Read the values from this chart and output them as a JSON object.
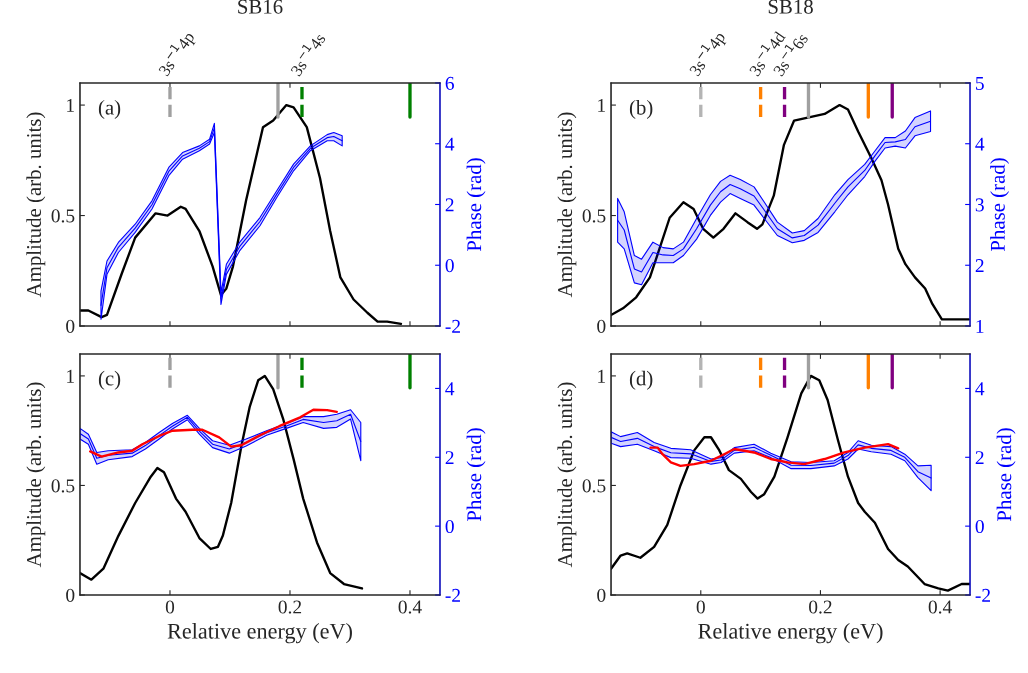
{
  "chart_data": [
    {
      "type": "line",
      "title": "SB16",
      "ylabel": "Amplitude (arb. units)",
      "y2label": "Phase (rad)",
      "annotations": [
        "(a)"
      ],
      "tick_labels": "y",
      "xlim": [
        -0.15,
        0.45
      ],
      "xticks": [
        0,
        0.2,
        0.4
      ],
      "ylim": [
        0,
        1.1
      ],
      "yticks": [
        0,
        0.5,
        1
      ],
      "y2lim": [
        -2,
        6
      ],
      "y2ticks": [
        -2,
        0,
        2,
        4,
        6
      ],
      "ref_lines": [
        {
          "axis": "x",
          "value": 0,
          "label": "3s$^{−1}$4p",
          "color": "#a0a0a0",
          "line_style": "dashed"
        },
        {
          "axis": "x",
          "value": 0.18,
          "color": "#a0a0a0",
          "line_style": "solid"
        },
        {
          "axis": "x",
          "value": 0.22,
          "label": "3s$^{−1}$4s",
          "color": "#008000",
          "line_style": "dashed"
        },
        {
          "axis": "x",
          "value": 0.4,
          "color": "#008000",
          "line_style": "solid"
        }
      ],
      "series": [
        {
          "type": "line",
          "color": "#000000",
          "x": [
            -0.15,
            -0.136,
            -0.114,
            -0.105,
            -0.08,
            -0.058,
            -0.024,
            -0.004,
            0.018,
            0.026,
            0.049,
            0.071,
            0.085,
            0.094,
            0.105,
            0.127,
            0.155,
            0.172,
            0.194,
            0.206,
            0.228,
            0.25,
            0.267,
            0.284,
            0.306,
            0.329,
            0.346,
            0.362,
            0.385
          ],
          "values": [
            0.07,
            0.07,
            0.04,
            0.05,
            0.24,
            0.4,
            0.51,
            0.5,
            0.54,
            0.53,
            0.43,
            0.27,
            0.14,
            0.17,
            0.27,
            0.57,
            0.9,
            0.93,
            1.0,
            0.99,
            0.9,
            0.67,
            0.43,
            0.22,
            0.12,
            0.06,
            0.02,
            0.02,
            0.01
          ]
        },
        {
          "type": "line",
          "axis": "y2",
          "color": "#0000ff",
          "x": [
            -0.115,
            -0.105,
            -0.086,
            -0.058,
            -0.03,
            -0.002,
            0.021,
            0.049,
            0.066,
            0.074,
            0.085,
            0.094,
            0.116,
            0.15,
            0.178,
            0.206,
            0.234,
            0.262,
            0.273,
            0.287
          ],
          "values": [
            -1.32,
            -0.08,
            0.59,
            1.22,
            1.99,
            3.09,
            3.6,
            3.85,
            4.07,
            4.52,
            -1.1,
            -0.14,
            0.61,
            1.44,
            2.34,
            3.22,
            3.85,
            4.2,
            4.24,
            4.1
          ],
          "lower": [
            -1.78,
            -0.3,
            0.42,
            1.08,
            1.85,
            2.95,
            3.49,
            3.77,
            3.99,
            4.37,
            -1.29,
            -0.3,
            0.47,
            1.3,
            2.23,
            3.11,
            3.77,
            4.1,
            4.1,
            3.93
          ],
          "upper": [
            -0.85,
            0.14,
            0.75,
            1.35,
            2.12,
            3.22,
            3.71,
            3.93,
            4.15,
            4.67,
            -0.9,
            0.03,
            0.75,
            1.57,
            2.45,
            3.33,
            3.93,
            4.3,
            4.37,
            4.26
          ]
        }
      ]
    },
    {
      "type": "line",
      "title": "SB18",
      "ylabel": "Amplitude (arb. units)",
      "y2label": "Phase (rad)",
      "annotations": [
        "(b)"
      ],
      "tick_labels": "y",
      "xlim": [
        -0.15,
        0.45
      ],
      "xticks": [
        0,
        0.2,
        0.4
      ],
      "ylim": [
        0,
        1.1
      ],
      "yticks": [
        0,
        0.5,
        1
      ],
      "y2lim": [
        1,
        5
      ],
      "y2ticks": [
        1,
        2,
        3,
        4,
        5
      ],
      "ref_lines": [
        {
          "axis": "x",
          "value": 0,
          "label": "3s$^{−1}$4p",
          "color": "#b4b4b4",
          "line_style": "dashed"
        },
        {
          "axis": "x",
          "value": 0.1,
          "label": "3s$^{−1}$4d",
          "color": "#ff8000",
          "line_style": "dashed"
        },
        {
          "axis": "x",
          "value": 0.14,
          "label": "3s$^{−1}$6s",
          "color": "#800080",
          "line_style": "dashed"
        },
        {
          "axis": "x",
          "value": 0.18,
          "color": "#a0a0a0",
          "line_style": "solid"
        },
        {
          "axis": "x",
          "value": 0.28,
          "color": "#ff8000",
          "line_style": "solid"
        },
        {
          "axis": "x",
          "value": 0.32,
          "color": "#800080",
          "line_style": "solid"
        }
      ],
      "series": [
        {
          "type": "line",
          "color": "#000000",
          "x": [
            -0.15,
            -0.13,
            -0.108,
            -0.085,
            -0.069,
            -0.052,
            -0.029,
            -0.012,
            0.004,
            0.021,
            0.038,
            0.058,
            0.078,
            0.094,
            0.103,
            0.122,
            0.139,
            0.156,
            0.173,
            0.19,
            0.207,
            0.232,
            0.246,
            0.263,
            0.285,
            0.302,
            0.313,
            0.33,
            0.342,
            0.358,
            0.375,
            0.387,
            0.403,
            0.426,
            0.448
          ],
          "values": [
            0.05,
            0.08,
            0.13,
            0.22,
            0.35,
            0.49,
            0.56,
            0.53,
            0.44,
            0.4,
            0.44,
            0.51,
            0.47,
            0.44,
            0.46,
            0.59,
            0.82,
            0.93,
            0.94,
            0.95,
            0.96,
            1.0,
            0.98,
            0.88,
            0.76,
            0.66,
            0.55,
            0.35,
            0.28,
            0.22,
            0.17,
            0.1,
            0.03,
            0.03,
            0.03
          ]
        },
        {
          "type": "line",
          "axis": "y2",
          "color": "#0000ff",
          "x": [
            -0.139,
            -0.128,
            -0.111,
            -0.099,
            -0.08,
            -0.063,
            -0.046,
            -0.029,
            -0.007,
            0.016,
            0.033,
            0.049,
            0.066,
            0.089,
            0.106,
            0.128,
            0.153,
            0.173,
            0.196,
            0.224,
            0.246,
            0.274,
            0.291,
            0.308,
            0.325,
            0.342,
            0.358,
            0.384
          ],
          "values": [
            2.74,
            2.58,
            1.94,
            1.89,
            2.21,
            2.17,
            2.16,
            2.27,
            2.6,
            2.99,
            3.21,
            3.33,
            3.26,
            3.14,
            2.91,
            2.6,
            2.45,
            2.49,
            2.66,
            3.02,
            3.29,
            3.56,
            3.8,
            4.02,
            4.03,
            4.07,
            4.28,
            4.37
          ],
          "lower": [
            2.38,
            2.27,
            1.71,
            1.68,
            2.04,
            2.04,
            2.04,
            2.16,
            2.43,
            2.82,
            3.04,
            3.18,
            3.1,
            2.99,
            2.77,
            2.49,
            2.37,
            2.41,
            2.54,
            2.88,
            3.16,
            3.46,
            3.71,
            3.93,
            3.96,
            3.93,
            4.13,
            4.2
          ],
          "upper": [
            3.1,
            2.88,
            2.16,
            2.1,
            2.38,
            2.29,
            2.27,
            2.38,
            2.77,
            3.16,
            3.38,
            3.48,
            3.41,
            3.29,
            3.04,
            2.71,
            2.53,
            2.57,
            2.77,
            3.16,
            3.41,
            3.66,
            3.88,
            4.1,
            4.1,
            4.21,
            4.43,
            4.54
          ]
        }
      ]
    },
    {
      "type": "line",
      "xlabel": "Relative energy (eV)",
      "ylabel": "Amplitude (arb. units)",
      "y2label": "Phase (rad)",
      "annotations": [
        "(c)"
      ],
      "xlim": [
        -0.15,
        0.45
      ],
      "xticks": [
        0,
        0.2,
        0.4
      ],
      "ylim": [
        0,
        1.1
      ],
      "yticks": [
        0,
        0.5,
        1
      ],
      "y2lim": [
        -2,
        5
      ],
      "y2ticks": [
        -2,
        0,
        2,
        4
      ],
      "ref_lines": [
        {
          "axis": "x",
          "value": 0,
          "color": "#a0a0a0",
          "line_style": "dashed"
        },
        {
          "axis": "x",
          "value": 0.18,
          "color": "#a0a0a0",
          "line_style": "solid"
        },
        {
          "axis": "x",
          "value": 0.22,
          "color": "#008000",
          "line_style": "dashed"
        },
        {
          "axis": "x",
          "value": 0.4,
          "color": "#008000",
          "line_style": "solid"
        }
      ],
      "series": [
        {
          "type": "line",
          "color": "#000000",
          "x": [
            -0.15,
            -0.131,
            -0.111,
            -0.086,
            -0.058,
            -0.032,
            -0.021,
            -0.01,
            0.01,
            0.026,
            0.049,
            0.068,
            0.08,
            0.088,
            0.102,
            0.119,
            0.133,
            0.147,
            0.158,
            0.172,
            0.189,
            0.206,
            0.222,
            0.245,
            0.267,
            0.29,
            0.32
          ],
          "values": [
            0.1,
            0.07,
            0.12,
            0.27,
            0.42,
            0.54,
            0.58,
            0.56,
            0.44,
            0.38,
            0.26,
            0.21,
            0.22,
            0.27,
            0.42,
            0.68,
            0.86,
            0.98,
            1.0,
            0.94,
            0.8,
            0.62,
            0.44,
            0.24,
            0.1,
            0.05,
            0.03
          ]
        },
        {
          "type": "line",
          "axis": "y2",
          "color": "#0000ff",
          "x": [
            -0.15,
            -0.136,
            -0.122,
            -0.103,
            -0.063,
            -0.041,
            -0.018,
            0.004,
            0.029,
            0.049,
            0.071,
            0.099,
            0.127,
            0.161,
            0.194,
            0.222,
            0.256,
            0.278,
            0.301,
            0.318
          ],
          "values": [
            2.69,
            2.53,
            1.97,
            2.06,
            2.12,
            2.34,
            2.63,
            2.9,
            3.16,
            2.76,
            2.38,
            2.24,
            2.43,
            2.71,
            2.91,
            3.1,
            3.01,
            3.06,
            3.25,
            2.46
          ],
          "lower": [
            2.53,
            2.38,
            1.8,
            1.93,
            2.02,
            2.24,
            2.53,
            2.82,
            3.09,
            2.67,
            2.28,
            2.12,
            2.33,
            2.64,
            2.84,
            3.01,
            2.84,
            2.87,
            3.11,
            1.9
          ],
          "upper": [
            2.84,
            2.67,
            2.14,
            2.19,
            2.22,
            2.43,
            2.72,
            2.98,
            3.22,
            2.84,
            2.48,
            2.35,
            2.53,
            2.77,
            2.98,
            3.18,
            3.18,
            3.25,
            3.38,
            3.01
          ]
        },
        {
          "type": "line",
          "axis": "y2",
          "color": "#ff0000",
          "x": [
            -0.133,
            -0.114,
            -0.086,
            -0.063,
            -0.046,
            -0.018,
            0.004,
            0.038,
            0.054,
            0.082,
            0.102,
            0.119,
            0.15,
            0.183,
            0.217,
            0.239,
            0.262,
            0.278
          ],
          "values": [
            2.17,
            2.02,
            2.14,
            2.19,
            2.38,
            2.62,
            2.77,
            2.8,
            2.8,
            2.58,
            2.31,
            2.35,
            2.64,
            2.91,
            3.16,
            3.38,
            3.37,
            3.32
          ]
        }
      ]
    },
    {
      "type": "line",
      "xlabel": "Relative energy (eV)",
      "ylabel": "Amplitude (arb. units)",
      "y2label": "Phase (rad)",
      "annotations": [
        "(d)"
      ],
      "xlim": [
        -0.15,
        0.45
      ],
      "xticks": [
        0,
        0.2,
        0.4
      ],
      "ylim": [
        0,
        1.1
      ],
      "yticks": [
        0,
        0.5,
        1
      ],
      "y2lim": [
        -2,
        5
      ],
      "y2ticks": [
        -2,
        0,
        2,
        4
      ],
      "ref_lines": [
        {
          "axis": "x",
          "value": 0,
          "color": "#b4b4b4",
          "line_style": "dashed"
        },
        {
          "axis": "x",
          "value": 0.1,
          "color": "#ff8000",
          "line_style": "dashed"
        },
        {
          "axis": "x",
          "value": 0.14,
          "color": "#800080",
          "line_style": "dashed"
        },
        {
          "axis": "x",
          "value": 0.18,
          "color": "#a0a0a0",
          "line_style": "solid"
        },
        {
          "axis": "x",
          "value": 0.28,
          "color": "#ff8000",
          "line_style": "solid"
        },
        {
          "axis": "x",
          "value": 0.32,
          "color": "#800080",
          "line_style": "solid"
        }
      ],
      "series": [
        {
          "type": "line",
          "color": "#000000",
          "x": [
            -0.15,
            -0.134,
            -0.123,
            -0.101,
            -0.078,
            -0.056,
            -0.034,
            -0.011,
            0.006,
            0.017,
            0.031,
            0.047,
            0.067,
            0.084,
            0.095,
            0.106,
            0.123,
            0.145,
            0.168,
            0.184,
            0.198,
            0.212,
            0.229,
            0.246,
            0.263,
            0.274,
            0.291,
            0.313,
            0.33,
            0.346,
            0.374,
            0.397,
            0.413,
            0.436,
            0.45
          ],
          "values": [
            0.12,
            0.18,
            0.19,
            0.17,
            0.22,
            0.32,
            0.5,
            0.66,
            0.72,
            0.72,
            0.66,
            0.57,
            0.53,
            0.47,
            0.44,
            0.46,
            0.54,
            0.72,
            0.92,
            1.0,
            0.98,
            0.89,
            0.71,
            0.54,
            0.42,
            0.38,
            0.33,
            0.21,
            0.16,
            0.13,
            0.05,
            0.03,
            0.02,
            0.05,
            0.05
          ]
        },
        {
          "type": "line",
          "axis": "y2",
          "color": "#0000ff",
          "x": [
            -0.15,
            -0.134,
            -0.106,
            -0.078,
            -0.05,
            -0.017,
            0.017,
            0.034,
            0.056,
            0.089,
            0.117,
            0.151,
            0.184,
            0.223,
            0.246,
            0.263,
            0.285,
            0.318,
            0.341,
            0.363,
            0.385
          ],
          "values": [
            2.58,
            2.46,
            2.55,
            2.31,
            2.13,
            2.1,
            1.88,
            1.92,
            2.2,
            2.29,
            2.06,
            1.77,
            1.76,
            1.83,
            2.05,
            2.36,
            2.26,
            2.2,
            2.0,
            1.58,
            1.4
          ],
          "lower": [
            2.41,
            2.31,
            2.38,
            2.19,
            1.99,
            1.97,
            1.8,
            1.85,
            2.12,
            2.19,
            1.99,
            1.67,
            1.67,
            1.75,
            1.95,
            2.24,
            2.16,
            2.09,
            1.9,
            1.41,
            1.03
          ],
          "upper": [
            2.74,
            2.6,
            2.72,
            2.43,
            2.26,
            2.22,
            1.95,
            1.99,
            2.28,
            2.38,
            2.12,
            1.87,
            1.85,
            1.9,
            2.14,
            2.48,
            2.35,
            2.31,
            2.09,
            1.75,
            1.77
          ]
        },
        {
          "type": "line",
          "axis": "y2",
          "color": "#ff0000",
          "x": [
            -0.084,
            -0.072,
            -0.064,
            -0.05,
            -0.034,
            -0.011,
            0.017,
            0.039,
            0.056,
            0.089,
            0.117,
            0.145,
            0.173,
            0.207,
            0.24,
            0.274,
            0.313,
            0.33
          ],
          "values": [
            2.28,
            2.28,
            2.09,
            1.85,
            1.75,
            1.8,
            1.9,
            2.09,
            2.24,
            2.14,
            1.95,
            1.85,
            1.8,
            1.95,
            2.14,
            2.28,
            2.38,
            2.26
          ]
        }
      ]
    }
  ]
}
